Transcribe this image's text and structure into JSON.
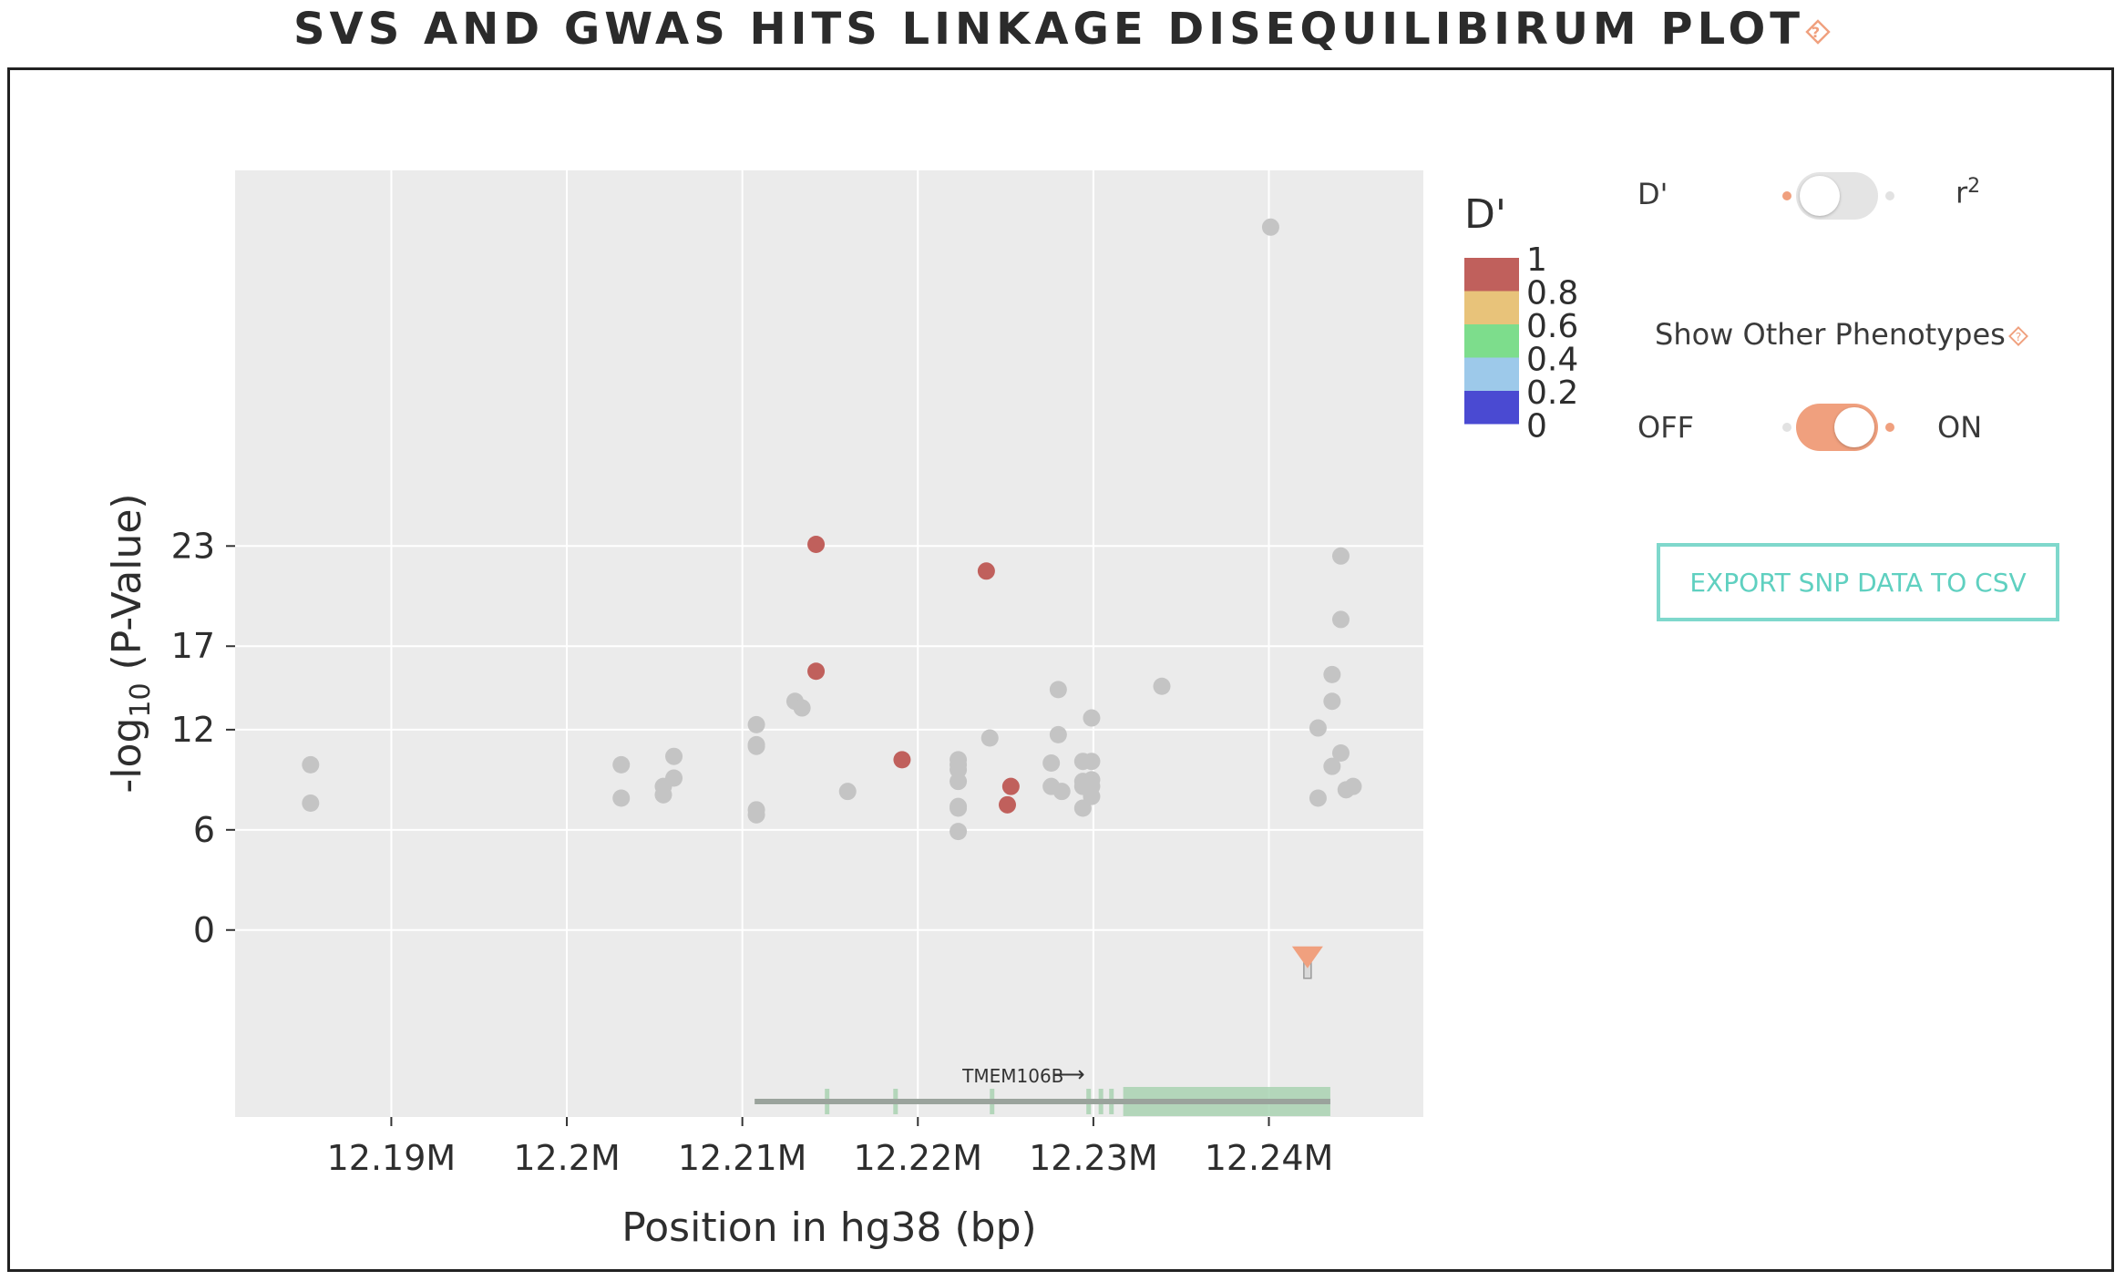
{
  "page": {
    "title": "SVS AND GWAS HITS LINKAGE DISEQUILIBIRUM PLOT",
    "help_icon": "question-diamond-icon"
  },
  "colors": {
    "accent": "#f0a07e",
    "export_border": "#7fd8cc",
    "export_text": "#5fd0c0",
    "panel_bg": "#ebebeb",
    "point_gray": "#c4c4c4",
    "point_red": "#c0605c",
    "gene_green": "#a9d2b2"
  },
  "chart_data": {
    "type": "scatter",
    "title": "",
    "xlabel": "Position in hg38 (bp)",
    "ylabel_base": "-log",
    "ylabel_sub": "10",
    "ylabel_rest": " (P-Value)",
    "x_ticks": [
      {
        "value": 12190000,
        "label": "12.19M"
      },
      {
        "value": 12200000,
        "label": "12.2M"
      },
      {
        "value": 12210000,
        "label": "12.21M"
      },
      {
        "value": 12220000,
        "label": "12.22M"
      },
      {
        "value": 12230000,
        "label": "12.23M"
      },
      {
        "value": 12240000,
        "label": "12.24M"
      }
    ],
    "y_ticks": [
      {
        "value": 0,
        "label": "0"
      },
      {
        "value": 6,
        "label": "6"
      },
      {
        "value": 12,
        "label": "12"
      },
      {
        "value": 17,
        "label": "17"
      },
      {
        "value": 23,
        "label": "23"
      }
    ],
    "xlim": [
      12181100,
      12248800
    ],
    "ylim": [
      -11.2,
      45.5
    ],
    "grid": true,
    "legend": {
      "title": "D'",
      "placement": "right",
      "stops": [
        {
          "label": "1",
          "color": "#c0605c"
        },
        {
          "label": "0.8",
          "color": "#e8c37a"
        },
        {
          "label": "0.6",
          "color": "#7ddd8c"
        },
        {
          "label": "0.4",
          "color": "#9dc9ea"
        },
        {
          "label": "0.2",
          "color": "#4a4ad2"
        },
        {
          "label": "0"
        }
      ]
    },
    "series": [
      {
        "color": "#c4c4c4",
        "points": [
          [
            12185400,
            9.9
          ],
          [
            12185400,
            7.6
          ],
          [
            12203100,
            9.9
          ],
          [
            12203100,
            7.9
          ],
          [
            12205500,
            8.6
          ],
          [
            12205500,
            8.1
          ],
          [
            12206100,
            10.4
          ],
          [
            12206100,
            9.1
          ],
          [
            12210800,
            12.3
          ],
          [
            12210800,
            11.1
          ],
          [
            12210800,
            11.0
          ],
          [
            12210800,
            7.2
          ],
          [
            12210800,
            6.9
          ],
          [
            12213000,
            13.7
          ],
          [
            12213400,
            13.3
          ],
          [
            12216000,
            8.3
          ],
          [
            12222300,
            10.2
          ],
          [
            12222300,
            9.9
          ],
          [
            12222300,
            9.6
          ],
          [
            12222300,
            8.9
          ],
          [
            12222300,
            7.4
          ],
          [
            12222300,
            7.3
          ],
          [
            12222300,
            5.9
          ],
          [
            12224100,
            11.5
          ],
          [
            12227600,
            10.0
          ],
          [
            12227600,
            8.6
          ],
          [
            12228000,
            14.4
          ],
          [
            12228000,
            11.7
          ],
          [
            12228200,
            8.3
          ],
          [
            12229400,
            10.1
          ],
          [
            12229400,
            8.9
          ],
          [
            12229400,
            8.6
          ],
          [
            12229400,
            7.3
          ],
          [
            12229900,
            12.7
          ],
          [
            12229900,
            10.1
          ],
          [
            12229900,
            9.0
          ],
          [
            12229900,
            8.6
          ],
          [
            12229900,
            8.0
          ],
          [
            12233900,
            14.6
          ],
          [
            12240100,
            42.1
          ],
          [
            12242800,
            12.1
          ],
          [
            12242800,
            7.9
          ],
          [
            12243600,
            15.3
          ],
          [
            12243600,
            13.7
          ],
          [
            12243600,
            9.8
          ],
          [
            12244100,
            22.4
          ],
          [
            12244100,
            18.6
          ],
          [
            12244100,
            10.6
          ],
          [
            12244400,
            8.4
          ],
          [
            12244800,
            8.6
          ]
        ]
      },
      {
        "color": "#c0605c",
        "points": [
          [
            12214200,
            23.1
          ],
          [
            12214200,
            15.5
          ],
          [
            12219100,
            10.2
          ],
          [
            12223900,
            21.5
          ],
          [
            12225300,
            8.6
          ],
          [
            12225100,
            7.5
          ]
        ]
      }
    ],
    "sv_marker": {
      "x": 12242200,
      "y": -1.8,
      "color": "#f0a07e"
    },
    "gene_track": {
      "name": "TMEM106B",
      "strand_arrow": "⟶",
      "start": 12210700,
      "end": 12243500,
      "exons": [
        [
          12214700,
          12214900
        ],
        [
          12218600,
          12218750
        ],
        [
          12224100,
          12224300
        ],
        [
          12229600,
          12229750
        ],
        [
          12230300,
          12230450
        ],
        [
          12230900,
          12231050
        ],
        [
          12231700,
          12243500
        ]
      ]
    }
  },
  "controls": {
    "ld_toggle": {
      "left_label": "D'",
      "right_label_base": "r",
      "right_label_sup": "2",
      "state": "left"
    },
    "phenotypes": {
      "label": "Show Other Phenotypes",
      "help_icon": "question-diamond-icon",
      "off_label": "OFF",
      "on_label": "ON",
      "state": "on"
    },
    "export_label": "EXPORT SNP DATA TO CSV"
  }
}
